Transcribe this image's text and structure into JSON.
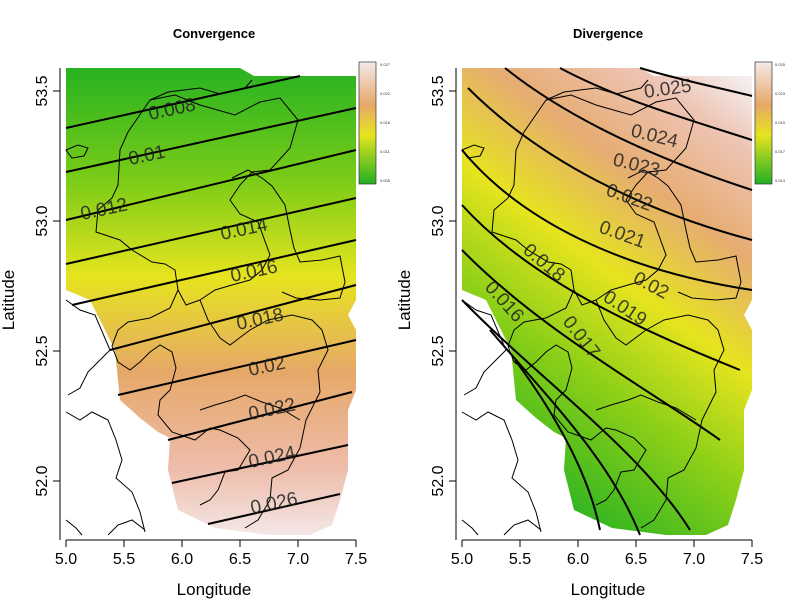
{
  "panels": [
    {
      "id": "convergence",
      "title": "Convergence",
      "xlabel": "Longitude",
      "ylabel": "Latitude",
      "x_ticks": [
        "5.0",
        "5.5",
        "6.0",
        "6.5",
        "7.0",
        "7.5"
      ],
      "y_ticks": [
        "52.0",
        "52.5",
        "53.0",
        "53.5"
      ],
      "legend_labels": [
        "0.027",
        "0.022",
        "0.016",
        "0.011",
        "0.005"
      ],
      "contour_labels": [
        "0.008",
        "0.01",
        "0.012",
        "0.014",
        "0.016",
        "0.018",
        "0.02",
        "0.022",
        "0.024",
        "0.026"
      ]
    },
    {
      "id": "divergence",
      "title": "Divergence",
      "xlabel": "Longitude",
      "ylabel": "Latitude",
      "x_ticks": [
        "5.0",
        "5.5",
        "6.0",
        "6.5",
        "7.0",
        "7.5"
      ],
      "y_ticks": [
        "52.0",
        "52.5",
        "53.0",
        "53.5"
      ],
      "legend_labels": [
        "0.025",
        "0.023",
        "0.019",
        "0.017",
        "0.014"
      ],
      "contour_labels": [
        "0.025",
        "0.024",
        "0.023",
        "0.022",
        "0.021",
        "0.02",
        "0.019",
        "0.018",
        "0.017",
        "0.016"
      ]
    }
  ],
  "colors": {
    "low": "#22b022",
    "mid": "#e8e520",
    "high": "#e8a878",
    "top": "#f6e8e8"
  }
}
